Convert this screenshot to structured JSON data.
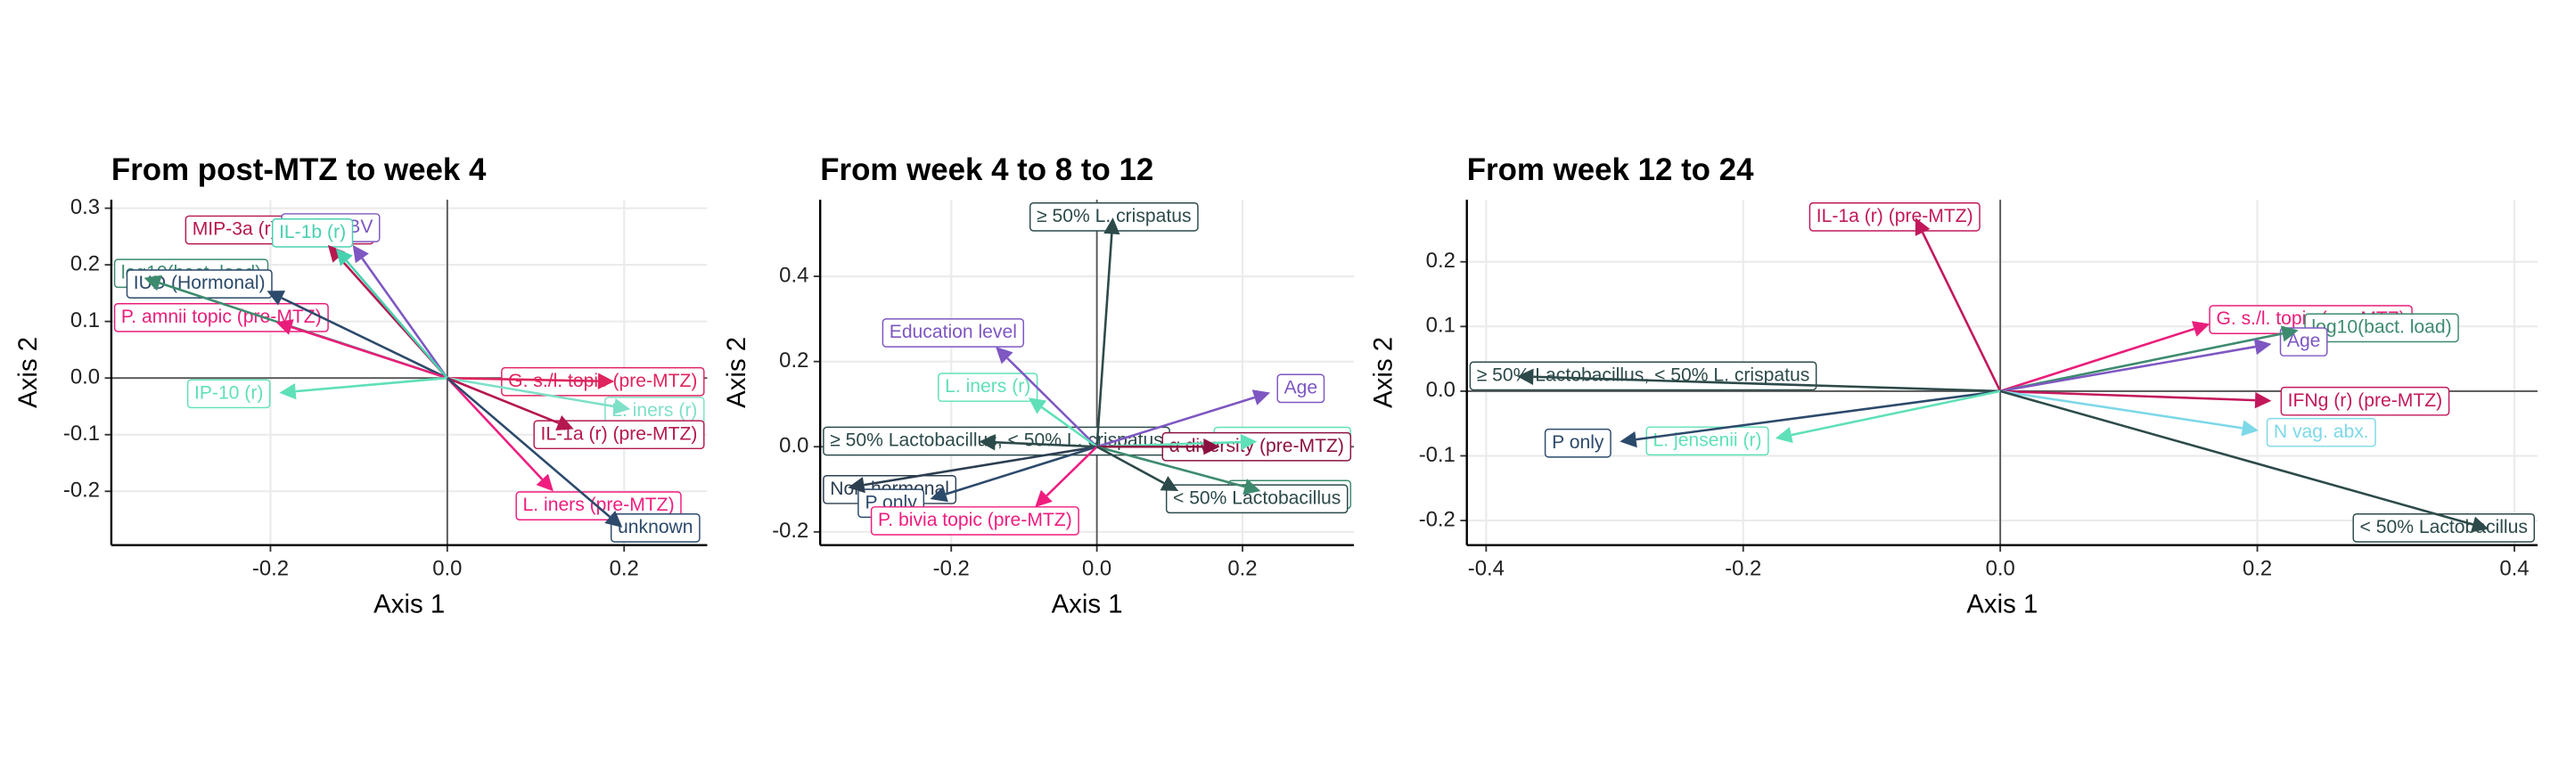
{
  "chart_data": [
    {
      "type": "biplot",
      "title": "From post-MTZ to week 4",
      "xlabel": "Axis 1",
      "ylabel": "Axis 2",
      "xlim": [
        -0.38,
        0.294
      ],
      "ylim": [
        -0.295,
        0.315
      ],
      "xticks": [
        -0.2,
        {
          "value": 0,
          "label": "0.0"
        },
        0.2
      ],
      "yticks": [
        -0.2,
        -0.1,
        {
          "value": 0,
          "label": "0.0"
        },
        0.1,
        0.2,
        0.3
      ],
      "grid": true,
      "arrows": [
        {
          "label": "log10(bact. load)",
          "color": "#3d8b6e",
          "x": -0.343,
          "y": 0.177
        },
        {
          "label": "IUD (Hormonal)",
          "color": "#2c4a6b",
          "x": -0.204,
          "y": 0.154
        },
        {
          "label": "P. amnii topic (pre-MTZ)",
          "color": "#e91e7a",
          "x": -0.194,
          "y": 0.099
        },
        {
          "label": "MIP-3a (r) (pre-MTZ)",
          "color": "#b5174f",
          "x": -0.135,
          "y": 0.235
        },
        {
          "label": "N past BV",
          "color": "#7e57c2",
          "x": -0.107,
          "y": 0.235
        },
        {
          "label": "IL-1b (r)",
          "color": "#48d1b0",
          "x": -0.126,
          "y": 0.229
        },
        {
          "label": "IP-10 (r)",
          "color": "#5fe0b8",
          "x": -0.19,
          "y": -0.026
        },
        {
          "label": "G. s./l. topic (pre-MTZ)",
          "color": "#e0245e",
          "x": 0.189,
          "y": -0.006
        },
        {
          "label": "L. iners (r)",
          "color": "#7fe0c8",
          "x": 0.207,
          "y": -0.055
        },
        {
          "label": "IL-1a (r) (pre-MTZ)",
          "color": "#b5174f",
          "x": 0.143,
          "y": -0.09
        },
        {
          "label": "L. iners (pre-MTZ)",
          "color": "#f01d7f",
          "x": 0.12,
          "y": -0.2
        },
        {
          "label": "unknown",
          "color": "#2c4a6b",
          "x": 0.198,
          "y": -0.264
        }
      ]
    },
    {
      "type": "biplot",
      "title": "From week 4 to 8 to 12",
      "xlabel": "Axis 1",
      "ylabel": "Axis 2",
      "xlim": [
        -0.38,
        0.353
      ],
      "ylim": [
        -0.231,
        0.58
      ],
      "xticks": [
        -0.2,
        {
          "value": 0,
          "label": "0.0"
        },
        0.2
      ],
      "yticks": [
        -0.2,
        {
          "value": 0,
          "label": "0.0"
        },
        0.2,
        0.4
      ],
      "grid": true,
      "arrows": [
        {
          "label": "≥ 50% L. crispatus",
          "color": "#2d4a4a",
          "x": 0.022,
          "y": 0.538
        },
        {
          "label": "Education level",
          "color": "#7e57c2",
          "x": -0.139,
          "y": 0.235
        },
        {
          "label": "L. iners (r)",
          "color": "#5fe0b8",
          "x": -0.094,
          "y": 0.115
        },
        {
          "label": "Age",
          "color": "#7e57c2",
          "x": 0.238,
          "y": 0.127
        },
        {
          "label": "G. s./l. topic (r)",
          "color": "#5fe0b8",
          "x": 0.22,
          "y": 0.012
        },
        {
          "label": "Non-hormonal",
          "color": "#2c3e50",
          "x": -0.342,
          "y": -0.096
        },
        {
          "label": "≥ 50% Lactobacillus, < 50% L. crispatus",
          "color": "#2d4a4a",
          "x": -0.162,
          "y": 0.012
        },
        {
          "label": "P only",
          "color": "#2c4a6b",
          "x": -0.229,
          "y": -0.123
        },
        {
          "label": "α diversity (pre-MTZ)",
          "color": "#8b1040",
          "x": 0.169,
          "y": 0.0
        },
        {
          "label": "α diversity (r)",
          "color": "#3d8b6e",
          "x": 0.225,
          "y": -0.104
        },
        {
          "label": "P. bivia topic (pre-MTZ)",
          "color": "#f01d7f",
          "x": -0.085,
          "y": -0.142
        },
        {
          "label": "< 50% Lactobacillus",
          "color": "#2d4a4a",
          "x": 0.112,
          "y": -0.104
        }
      ]
    },
    {
      "type": "biplot",
      "title": "From week 12 to 24",
      "xlabel": "Axis 1",
      "ylabel": "Axis 2",
      "xlim": [
        -0.415,
        0.418
      ],
      "ylim": [
        -0.238,
        0.296
      ],
      "xticks": [
        -0.4,
        -0.2,
        {
          "value": 0,
          "label": "0.0"
        },
        0.2,
        0.4
      ],
      "yticks": [
        -0.2,
        -0.1,
        {
          "value": 0,
          "label": "0.0"
        },
        0.1,
        0.2
      ],
      "grid": true,
      "arrows": [
        {
          "label": "IL-1a (r) (pre-MTZ)",
          "color": "#c2185b",
          "x": -0.066,
          "y": 0.268
        },
        {
          "label": "G. s./l. topic (pre-MTZ)",
          "color": "#e91e7a",
          "x": 0.163,
          "y": 0.104
        },
        {
          "label": "log10(bact. load)",
          "color": "#3d8b6e",
          "x": 0.232,
          "y": 0.094
        },
        {
          "label": "Age",
          "color": "#7e57c2",
          "x": 0.211,
          "y": 0.073
        },
        {
          "label": "≥ 50% Lactobacillus, < 50% L. crispatus",
          "color": "#2d4a4a",
          "x": -0.376,
          "y": 0.023
        },
        {
          "label": "IFNg (r) (pre-MTZ)",
          "color": "#c2185b",
          "x": 0.211,
          "y": -0.015
        },
        {
          "label": "P only",
          "color": "#2c4a6b",
          "x": -0.296,
          "y": -0.078
        },
        {
          "label": "L. jensenii (r)",
          "color": "#5fe0b8",
          "x": -0.175,
          "y": -0.073
        },
        {
          "label": "N vag. abx.",
          "color": "#7dd8e8",
          "x": 0.201,
          "y": -0.061
        },
        {
          "label": "< 50% Lactobacillus",
          "color": "#2d4a4a",
          "x": 0.38,
          "y": -0.213
        }
      ]
    }
  ]
}
